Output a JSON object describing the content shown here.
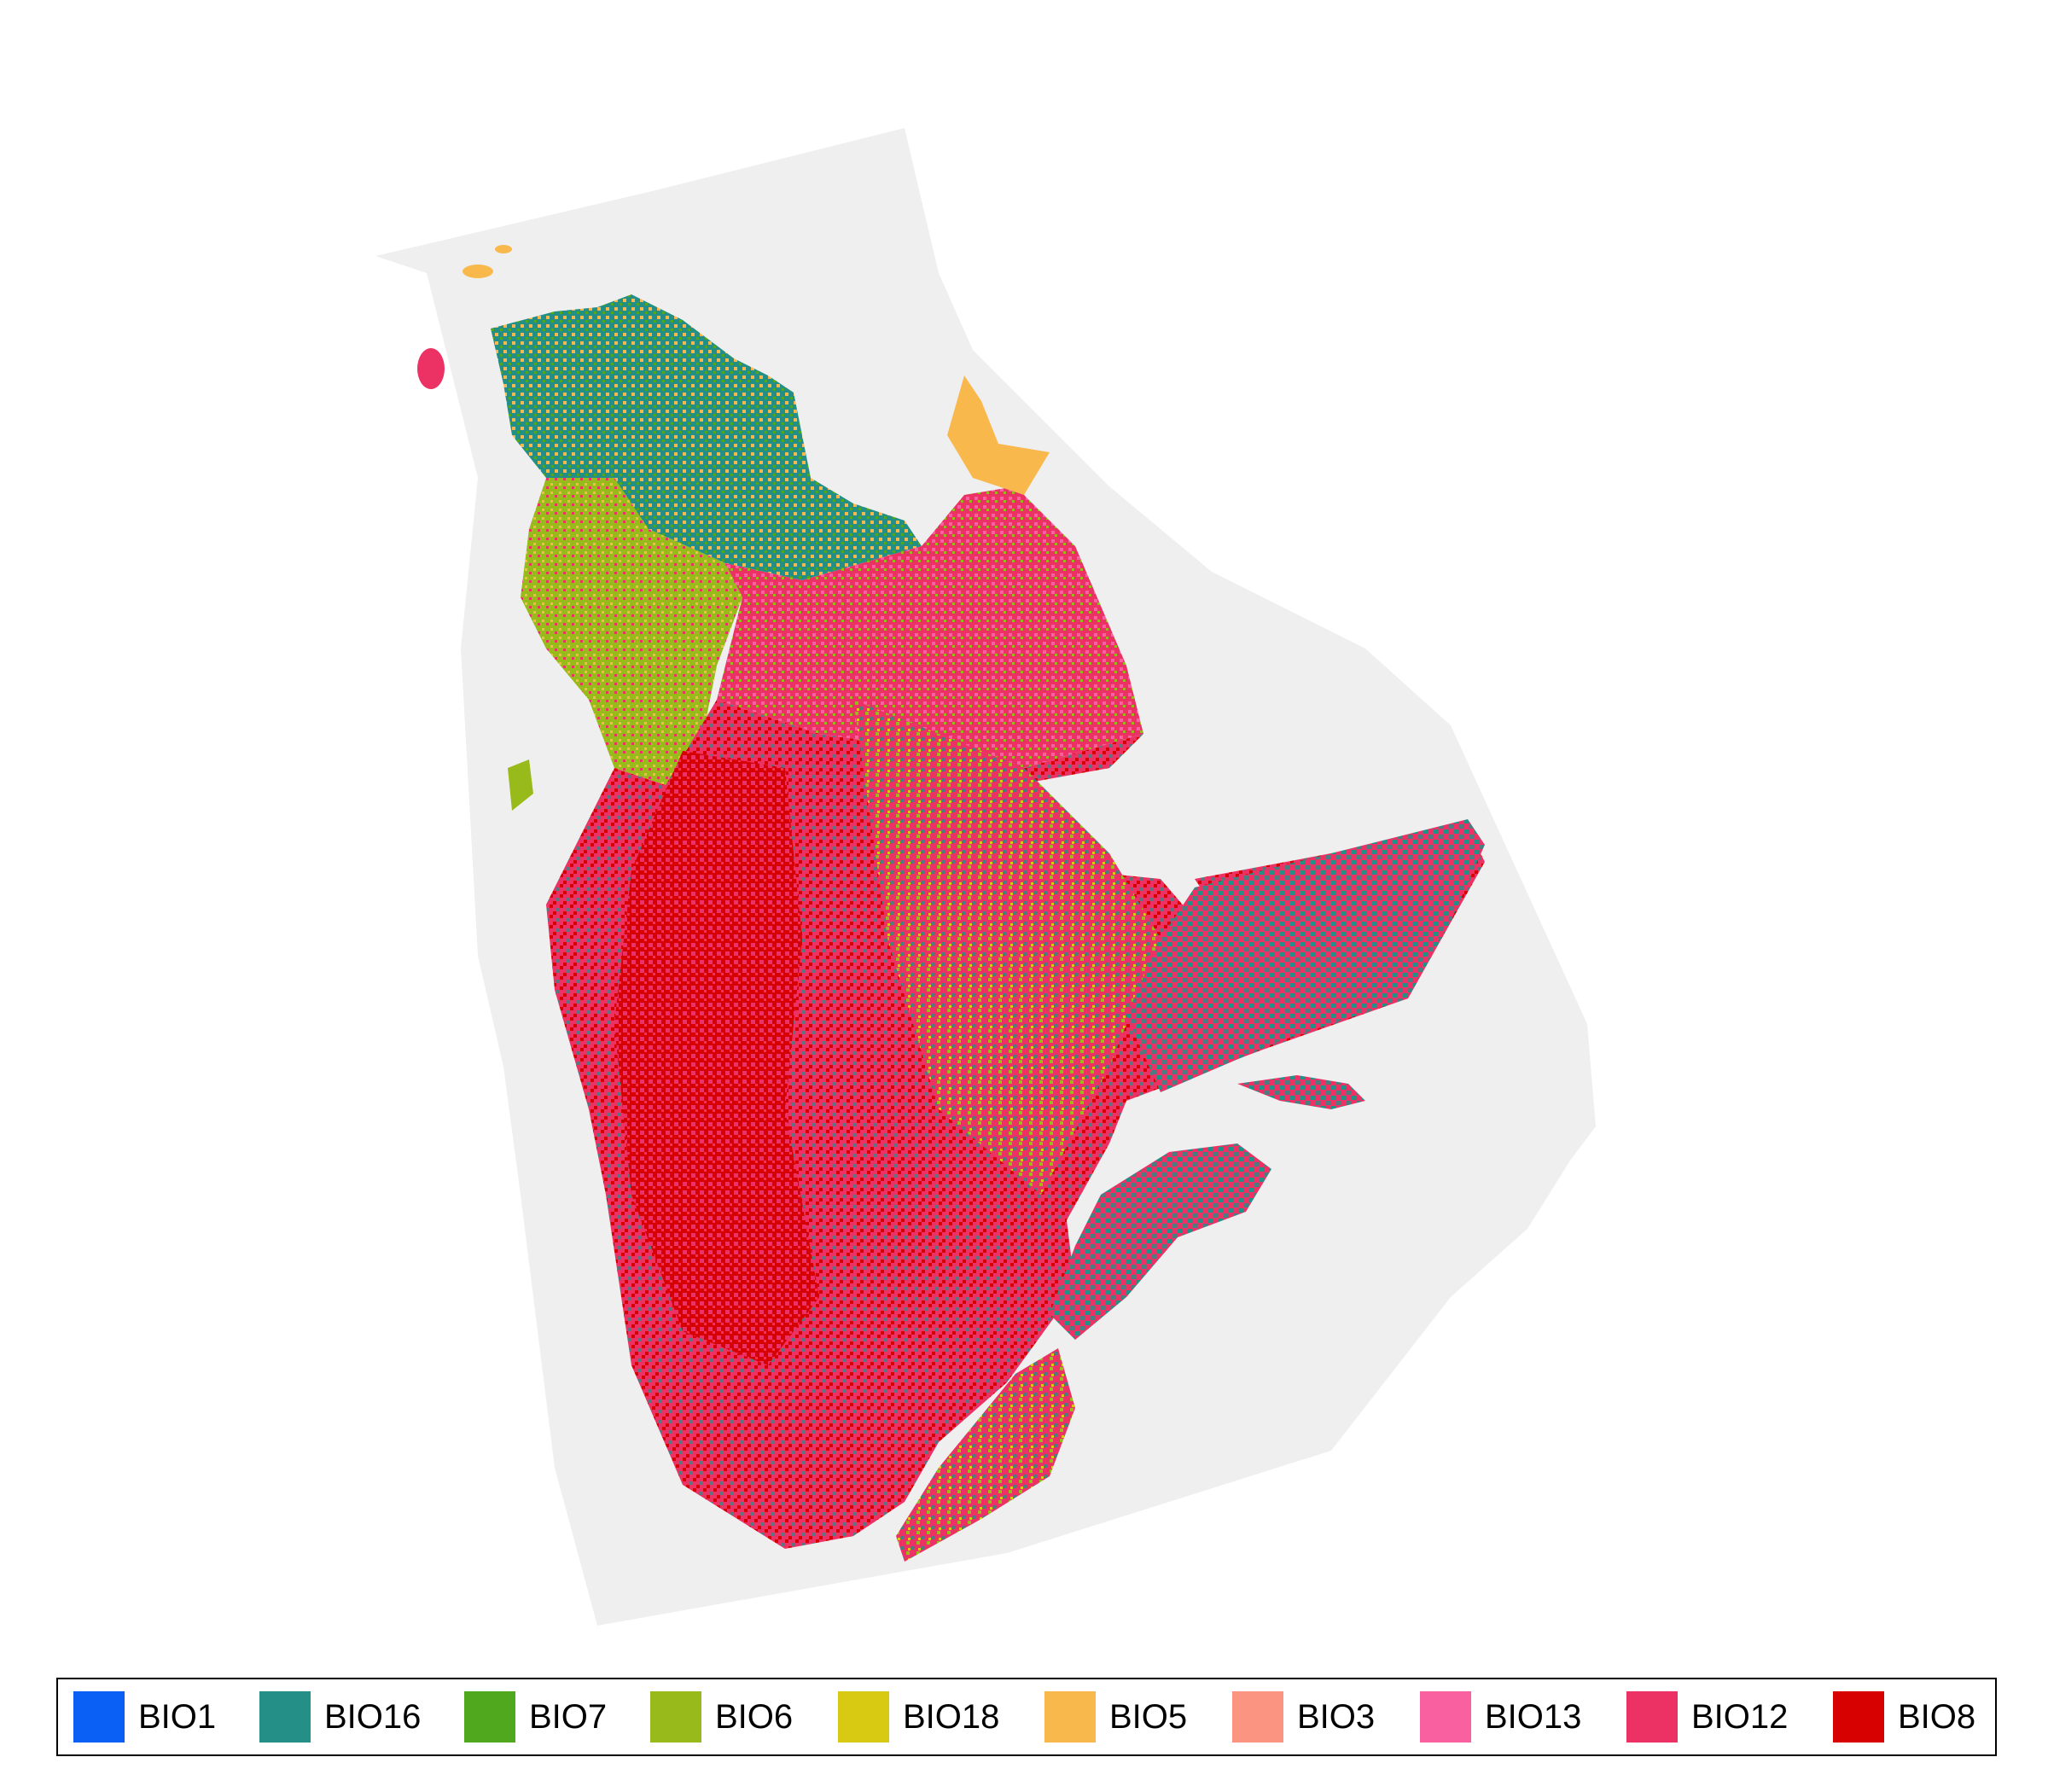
{
  "map": {
    "background_region_color": "#efefef",
    "dominant_category": "BIO12",
    "secondary_categories": [
      "BIO8",
      "BIO16",
      "BIO6",
      "BIO5",
      "BIO18",
      "BIO13",
      "BIO7"
    ]
  },
  "legend": {
    "items": [
      {
        "label": "BIO1",
        "color": "#0a5ff5"
      },
      {
        "label": "BIO16",
        "color": "#248f86"
      },
      {
        "label": "BIO7",
        "color": "#50a81f"
      },
      {
        "label": "BIO6",
        "color": "#99ba1b"
      },
      {
        "label": "BIO18",
        "color": "#d8c912"
      },
      {
        "label": "BIO5",
        "color": "#f9b84b"
      },
      {
        "label": "BIO3",
        "color": "#fb9581"
      },
      {
        "label": "BIO13",
        "color": "#f9609f"
      },
      {
        "label": "BIO12",
        "color": "#ec3264"
      },
      {
        "label": "BIO8",
        "color": "#d80101"
      }
    ]
  }
}
